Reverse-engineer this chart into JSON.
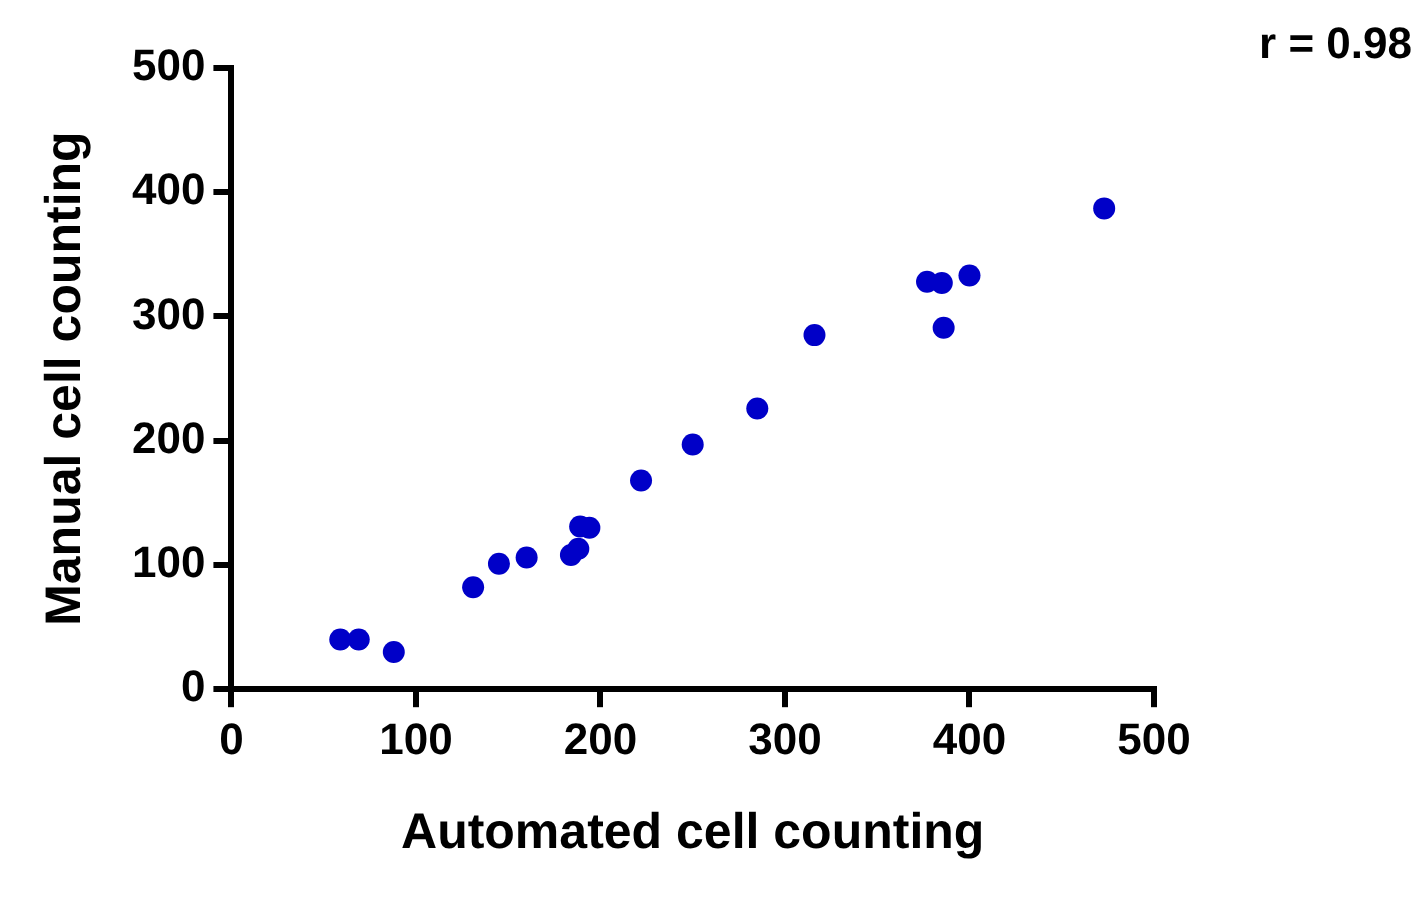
{
  "chart_data": {
    "type": "scatter",
    "xlabel": "Automated cell counting",
    "ylabel": "Manual cell counting",
    "annotations": [
      "r = 0.98"
    ],
    "xlim": [
      0,
      500
    ],
    "xticks": [
      0,
      100,
      200,
      300,
      400,
      500
    ],
    "ylim": [
      0,
      500
    ],
    "yticks": [
      0,
      100,
      200,
      300,
      400,
      500
    ],
    "grid": false,
    "legend": false,
    "marker": "circle",
    "series": [
      {
        "color": "#0000c8",
        "x": [
          59,
          69,
          88,
          131,
          145,
          160,
          184,
          188,
          189,
          194,
          222,
          250,
          285,
          316,
          377,
          385,
          386,
          400,
          473
        ],
        "values": [
          40,
          40,
          30,
          82,
          101,
          106,
          108,
          113,
          131,
          130,
          168,
          197,
          226,
          285,
          328,
          327,
          291,
          333,
          387
        ]
      }
    ]
  }
}
